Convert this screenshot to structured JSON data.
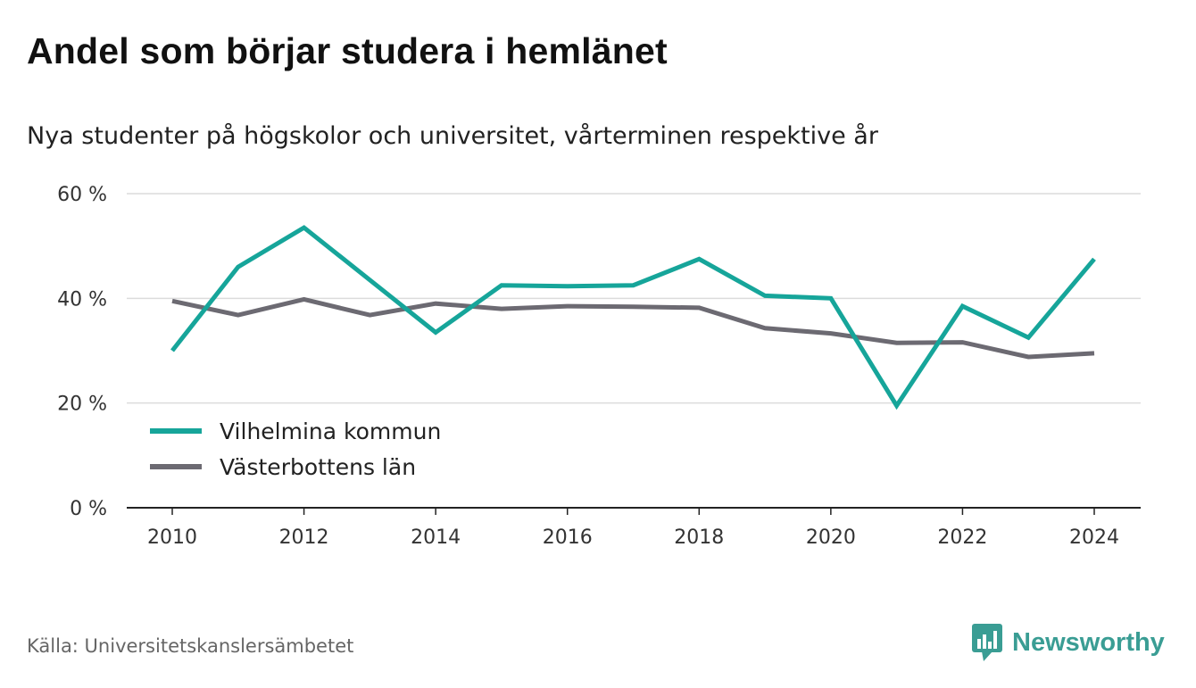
{
  "header": {
    "title": "Andel som börjar studera i hemlänet",
    "subtitle": "Nya studenter på högskolor och universitet, vårterminen respektive år"
  },
  "footer": {
    "source": "Källa: Universitetskanslersämbetet",
    "brand": "Newsworthy",
    "brand_color": "#3a9d94",
    "brand_icon": "newsworthy-chat-bar-icon"
  },
  "chart_data": {
    "type": "line",
    "x": [
      2010,
      2011,
      2012,
      2013,
      2014,
      2015,
      2016,
      2017,
      2018,
      2019,
      2020,
      2021,
      2022,
      2023,
      2024
    ],
    "x_ticks": [
      "2010",
      "2012",
      "2014",
      "2016",
      "2018",
      "2020",
      "2022",
      "2024"
    ],
    "y_ticks": [
      "0 %",
      "20 %",
      "40 %",
      "60 %"
    ],
    "ylim": [
      0,
      60
    ],
    "grid": true,
    "legend_position": "bottom-left",
    "series": [
      {
        "name": "Vilhelmina kommun",
        "color": "#16a59a",
        "values": [
          30,
          46,
          53.5,
          43.5,
          33.5,
          42.5,
          42.3,
          42.5,
          47.5,
          40.5,
          40,
          19.5,
          38.5,
          32.5,
          47.5
        ]
      },
      {
        "name": "Västerbottens län",
        "color": "#6c6a72",
        "values": [
          39.5,
          36.8,
          39.8,
          36.8,
          39,
          38,
          38.5,
          38.4,
          38.2,
          34.3,
          33.3,
          31.5,
          31.6,
          28.8,
          29.5
        ]
      }
    ]
  }
}
